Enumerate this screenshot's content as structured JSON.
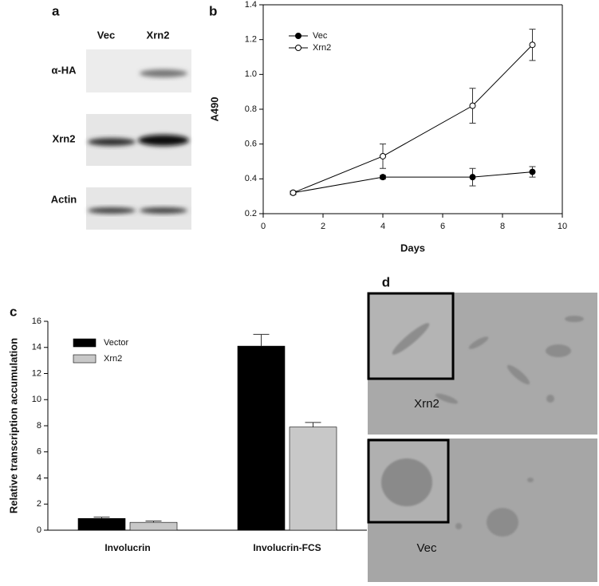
{
  "panel_a": {
    "label": "a",
    "columns": [
      "Vec",
      "Xrn2"
    ],
    "rows": [
      "α-HA",
      "Xrn2",
      "Actin"
    ]
  },
  "chart_data": [
    {
      "type": "line",
      "panel_label": "b",
      "xlabel": "Days",
      "ylabel": "A490",
      "x": [
        1,
        4,
        7,
        9
      ],
      "series": [
        {
          "name": "Vec",
          "color": "#000000",
          "marker_fill": "#000000",
          "values": [
            0.32,
            0.41,
            0.41,
            0.44
          ],
          "errors": [
            0.01,
            0.01,
            0.05,
            0.03
          ]
        },
        {
          "name": "Xrn2",
          "color": "#000000",
          "marker_fill": "#ffffff",
          "values": [
            0.32,
            0.53,
            0.82,
            1.17
          ],
          "errors": [
            0.01,
            0.07,
            0.1,
            0.09
          ]
        }
      ],
      "xlim": [
        0,
        10
      ],
      "xticks": [
        0,
        2,
        4,
        6,
        8,
        10
      ],
      "ylim": [
        0.2,
        1.4
      ],
      "yticks": [
        0.2,
        0.4,
        0.6,
        0.8,
        {
          "value": 1,
          "label": "1.0"
        },
        1.2,
        1.4
      ],
      "legend": "upper-left"
    },
    {
      "type": "bar",
      "panel_label": "c",
      "ylabel": "Relative transcription accumulation",
      "categories": [
        "Involucrin",
        "Involucrin-FCS"
      ],
      "series": [
        {
          "name": "Vector",
          "color": "#000000",
          "values": [
            0.9,
            14.1
          ],
          "errors": [
            0.1,
            0.9
          ]
        },
        {
          "name": "Xrn2",
          "color": "#c8c8c8",
          "values": [
            0.6,
            7.9
          ],
          "errors": [
            0.1,
            0.35
          ]
        }
      ],
      "ylim": [
        0,
        16
      ],
      "yticks": [
        0,
        2,
        4,
        6,
        8,
        10,
        12,
        14,
        16
      ],
      "legend": "upper-left"
    }
  ],
  "panel_d": {
    "label": "d",
    "images": [
      "Xrn2",
      "Vec"
    ]
  }
}
